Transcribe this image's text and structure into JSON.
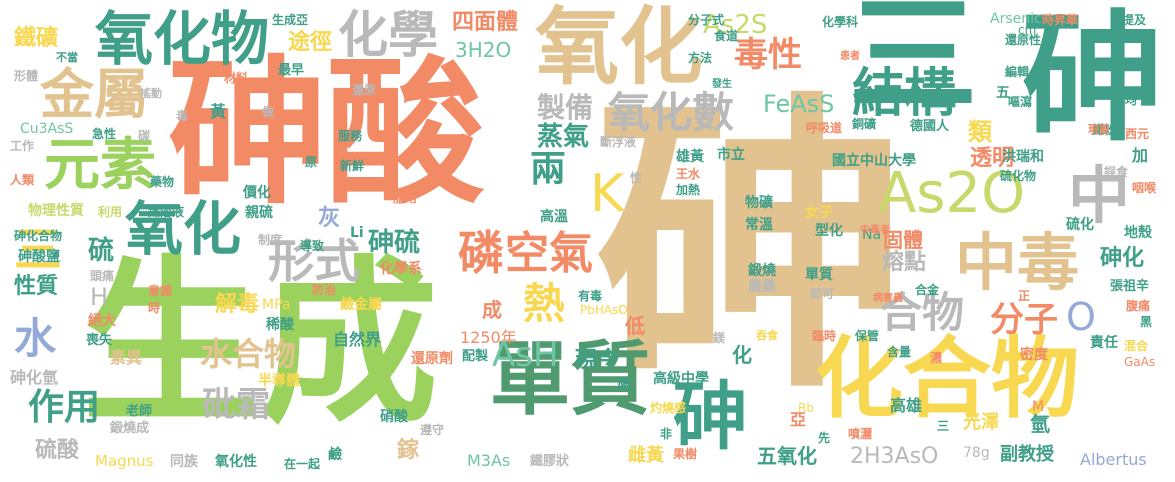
{
  "palette": {
    "tan": "#e2c38f",
    "salmon": "#f28a66",
    "green": "#9bd15d",
    "teal": "#6fc6a4",
    "seagreen": "#3f9f88",
    "gray": "#b9b9b9",
    "yellow": "#f8d850",
    "blue": "#94a9d8",
    "olive": "#c8d86a",
    "darkgreen": "#4f9a6f"
  },
  "words": [
    {
      "text": "砷",
      "color": "tan"
    },
    {
      "text": "生成",
      "color": "green"
    },
    {
      "text": "砷酸",
      "color": "salmon"
    },
    {
      "text": "砷",
      "color": "seagreen"
    },
    {
      "text": "三",
      "color": "seagreen"
    },
    {
      "text": "氧化",
      "color": "tan"
    },
    {
      "text": "化合物",
      "color": "yellow"
    },
    {
      "text": "單質",
      "color": "darkgreen"
    },
    {
      "text": "砷",
      "color": "seagreen"
    },
    {
      "text": "As2O",
      "color": "olive"
    },
    {
      "text": "中毒",
      "color": "tan"
    },
    {
      "text": "中",
      "color": "gray"
    },
    {
      "text": "氧化物",
      "color": "seagreen"
    },
    {
      "text": "氧化",
      "color": "seagreen"
    },
    {
      "text": "化學",
      "color": "gray"
    },
    {
      "text": "金屬",
      "color": "tan"
    },
    {
      "text": "元素",
      "color": "green"
    },
    {
      "text": "結構",
      "color": "seagreen"
    },
    {
      "text": "毒性",
      "color": "salmon"
    },
    {
      "text": "氧化數",
      "color": "gray"
    },
    {
      "text": "磷",
      "color": "salmon"
    },
    {
      "text": "空氣",
      "color": "salmon"
    },
    {
      "text": "形式",
      "color": "gray"
    },
    {
      "text": "熱",
      "color": "yellow"
    },
    {
      "text": "AsH",
      "color": "teal"
    },
    {
      "text": "合物",
      "color": "gray"
    },
    {
      "text": "水",
      "color": "blue"
    },
    {
      "text": "作用",
      "color": "seagreen"
    },
    {
      "text": "水合物",
      "color": "tan"
    },
    {
      "text": "砒霜",
      "color": "gray"
    },
    {
      "text": "三",
      "color": "yellow"
    },
    {
      "text": "硫",
      "color": "seagreen"
    },
    {
      "text": "K",
      "color": "yellow"
    },
    {
      "text": "兩",
      "color": "seagreen"
    },
    {
      "text": "製備",
      "color": "gray"
    },
    {
      "text": "蒸氣",
      "color": "seagreen"
    },
    {
      "text": "分子",
      "color": "salmon"
    },
    {
      "text": "O",
      "color": "blue"
    },
    {
      "text": "砷化",
      "color": "seagreen"
    },
    {
      "text": "FeAsS",
      "color": "teal"
    },
    {
      "text": "As2S",
      "color": "olive"
    },
    {
      "text": "四面體",
      "color": "salmon"
    },
    {
      "text": "3H2O",
      "color": "teal"
    },
    {
      "text": "途徑",
      "color": "yellow"
    },
    {
      "text": "鐵礦",
      "color": "yellow"
    },
    {
      "text": "砷硫",
      "color": "seagreen"
    },
    {
      "text": "灰",
      "color": "blue"
    },
    {
      "text": "熔點",
      "color": "gray"
    },
    {
      "text": "固體",
      "color": "salmon"
    },
    {
      "text": "類",
      "color": "yellow"
    },
    {
      "text": "透明",
      "color": "salmon"
    },
    {
      "text": "解毒",
      "color": "yellow"
    },
    {
      "text": "現今",
      "color": "seagreen"
    },
    {
      "text": "H",
      "color": "gray"
    },
    {
      "text": "性質",
      "color": "seagreen"
    },
    {
      "text": "硫酸",
      "color": "gray"
    },
    {
      "text": "2H3AsO",
      "color": "gray"
    },
    {
      "text": "五氧化",
      "color": "seagreen"
    },
    {
      "text": "副教授",
      "color": "seagreen"
    },
    {
      "text": "Albertus",
      "color": "blue"
    },
    {
      "text": "Magnus",
      "color": "yellow"
    },
    {
      "text": "M3As",
      "color": "teal"
    },
    {
      "text": "鐵膠狀",
      "color": "gray"
    },
    {
      "text": "雌黃",
      "color": "yellow"
    },
    {
      "text": "光澤",
      "color": "yellow"
    },
    {
      "text": "高雄",
      "color": "seagreen"
    },
    {
      "text": "砷化氫",
      "color": "gray"
    },
    {
      "text": "素異",
      "color": "tan"
    },
    {
      "text": "老師",
      "color": "seagreen"
    },
    {
      "text": "鍛燒成",
      "color": "gray"
    },
    {
      "text": "同族",
      "color": "gray"
    },
    {
      "text": "氧化性",
      "color": "seagreen"
    },
    {
      "text": "在一起",
      "color": "seagreen"
    },
    {
      "text": "鹼",
      "color": "seagreen"
    },
    {
      "text": "硝酸",
      "color": "seagreen"
    },
    {
      "text": "遵守",
      "color": "gray"
    },
    {
      "text": "鎵",
      "color": "tan"
    },
    {
      "text": "自然界",
      "color": "seagreen"
    },
    {
      "text": "還原劑",
      "color": "salmon"
    },
    {
      "text": "1250年",
      "color": "salmon"
    },
    {
      "text": "配製",
      "color": "seagreen"
    },
    {
      "text": "高級中學",
      "color": "seagreen"
    },
    {
      "text": "化",
      "color": "seagreen"
    },
    {
      "text": "低",
      "color": "salmon"
    },
    {
      "text": "成",
      "color": "salmon"
    },
    {
      "text": "化學系",
      "color": "salmon"
    },
    {
      "text": "鹼金屬",
      "color": "yellow"
    },
    {
      "text": "MPa",
      "color": "yellow"
    },
    {
      "text": "稀酸",
      "color": "seagreen"
    },
    {
      "text": "半導體",
      "color": "yellow"
    },
    {
      "text": "絕大",
      "color": "salmon"
    },
    {
      "text": "喪失",
      "color": "seagreen"
    },
    {
      "text": "砷酸鹽",
      "color": "seagreen"
    },
    {
      "text": "頭痛",
      "color": "gray"
    },
    {
      "text": "意識",
      "color": "salmon"
    },
    {
      "text": "時",
      "color": "salmon"
    },
    {
      "text": "物理性質",
      "color": "olive"
    },
    {
      "text": "利用",
      "color": "olive"
    },
    {
      "text": "鐵溶液",
      "color": "seagreen"
    },
    {
      "text": "砷化合物",
      "color": "seagreen"
    },
    {
      "text": "人類",
      "color": "salmon"
    },
    {
      "text": "藥物",
      "color": "seagreen"
    },
    {
      "text": "價化",
      "color": "seagreen"
    },
    {
      "text": "親硫",
      "color": "seagreen"
    },
    {
      "text": "制度",
      "color": "gray"
    },
    {
      "text": "導致",
      "color": "seagreen"
    },
    {
      "text": "防治",
      "color": "salmon"
    },
    {
      "text": "Li",
      "color": "seagreen"
    },
    {
      "text": "形體",
      "color": "gray"
    },
    {
      "text": "不當",
      "color": "seagreen"
    },
    {
      "text": "搖動",
      "color": "gray"
    },
    {
      "text": "Cu3AsS",
      "color": "teal"
    },
    {
      "text": "急性",
      "color": "seagreen"
    },
    {
      "text": "工作",
      "color": "gray"
    },
    {
      "text": "碳",
      "color": "gray"
    },
    {
      "text": "服務",
      "color": "seagreen"
    },
    {
      "text": "還原",
      "color": "gray"
    },
    {
      "text": "做",
      "color": "gray"
    },
    {
      "text": "原",
      "color": "seagreen"
    },
    {
      "text": "新鮮",
      "color": "seagreen"
    },
    {
      "text": "材料",
      "color": "salmon"
    },
    {
      "text": "最早",
      "color": "seagreen"
    },
    {
      "text": "生成亞",
      "color": "seagreen"
    },
    {
      "text": "毒",
      "color": "gray"
    },
    {
      "text": "黃",
      "color": "seagreen"
    },
    {
      "text": "服用",
      "color": "salmon"
    },
    {
      "text": "斷浮液",
      "color": "gray"
    },
    {
      "text": "雄黃",
      "color": "seagreen"
    },
    {
      "text": "市立",
      "color": "seagreen"
    },
    {
      "text": "王水",
      "color": "salmon"
    },
    {
      "text": "加熱",
      "color": "seagreen"
    },
    {
      "text": "高溫",
      "color": "seagreen"
    },
    {
      "text": "性",
      "color": "gray"
    },
    {
      "text": "物礦",
      "color": "seagreen"
    },
    {
      "text": "常溫",
      "color": "seagreen"
    },
    {
      "text": "女子",
      "color": "yellow"
    },
    {
      "text": "型化",
      "color": "seagreen"
    },
    {
      "text": "鍛燒",
      "color": "seagreen"
    },
    {
      "text": "農藥",
      "color": "gray"
    },
    {
      "text": "單質",
      "color": "seagreen"
    },
    {
      "text": "即可",
      "color": "gray"
    },
    {
      "text": "Na",
      "color": "seagreen"
    },
    {
      "text": "中毒者",
      "color": "salmon"
    },
    {
      "text": "病害蟲",
      "color": "salmon"
    },
    {
      "text": "合金",
      "color": "seagreen"
    },
    {
      "text": "國立中山大學",
      "color": "seagreen"
    },
    {
      "text": "洪瑞和",
      "color": "seagreen"
    },
    {
      "text": "德國人",
      "color": "seagreen"
    },
    {
      "text": "硫化物",
      "color": "seagreen"
    },
    {
      "text": "呼吸道",
      "color": "salmon"
    },
    {
      "text": "銅礦",
      "color": "seagreen"
    },
    {
      "text": "化學科",
      "color": "seagreen"
    },
    {
      "text": "分子式",
      "color": "seagreen"
    },
    {
      "text": "Arsenic",
      "color": "seagreen"
    },
    {
      "text": "時昇華",
      "color": "salmon"
    },
    {
      "text": "提及",
      "color": "seagreen"
    },
    {
      "text": "還原性",
      "color": "seagreen"
    },
    {
      "text": "方法",
      "color": "seagreen"
    },
    {
      "text": "食道",
      "color": "seagreen"
    },
    {
      "text": "發生",
      "color": "seagreen"
    },
    {
      "text": "患者",
      "color": "salmon"
    },
    {
      "text": "編輯",
      "color": "seagreen"
    },
    {
      "text": "嘔瀉",
      "color": "seagreen"
    },
    {
      "text": "均",
      "color": "seagreen"
    },
    {
      "text": "鐵粉",
      "color": "seagreen"
    },
    {
      "text": "西元",
      "color": "salmon"
    },
    {
      "text": "誤食",
      "color": "gray"
    },
    {
      "text": "咽喉",
      "color": "salmon"
    },
    {
      "text": "加",
      "color": "seagreen"
    },
    {
      "text": "地殼",
      "color": "seagreen"
    },
    {
      "text": "張祖辛",
      "color": "seagreen"
    },
    {
      "text": "腹痛",
      "color": "salmon"
    },
    {
      "text": "責任",
      "color": "seagreen"
    },
    {
      "text": "黑",
      "color": "seagreen"
    },
    {
      "text": "混合",
      "color": "yellow"
    },
    {
      "text": "GaAs",
      "color": "salmon"
    },
    {
      "text": "密度",
      "color": "salmon"
    },
    {
      "text": "含量",
      "color": "seagreen"
    },
    {
      "text": "濃",
      "color": "salmon"
    },
    {
      "text": "保管",
      "color": "seagreen"
    },
    {
      "text": "臨時",
      "color": "salmon"
    },
    {
      "text": "吞食",
      "color": "yellow"
    },
    {
      "text": "鎂",
      "color": "gray"
    },
    {
      "text": "有毒",
      "color": "seagreen"
    },
    {
      "text": "PbHAsO",
      "color": "yellow"
    },
    {
      "text": "C",
      "color": "yellow"
    },
    {
      "text": "灼燒感",
      "color": "yellow"
    },
    {
      "text": "礦",
      "color": "seagreen"
    },
    {
      "text": "非",
      "color": "seagreen"
    },
    {
      "text": "亞",
      "color": "salmon"
    },
    {
      "text": "Rb",
      "color": "yellow"
    },
    {
      "text": "果樹",
      "color": "salmon"
    },
    {
      "text": "先",
      "color": "seagreen"
    },
    {
      "text": "噴灑",
      "color": "salmon"
    },
    {
      "text": "三",
      "color": "seagreen"
    },
    {
      "text": "78g",
      "color": "gray"
    },
    {
      "text": "M",
      "color": "salmon"
    },
    {
      "text": "五",
      "color": "seagreen"
    },
    {
      "text": "cm",
      "color": "seagreen"
    },
    {
      "text": "現象",
      "color": "salmon"
    },
    {
      "text": "正",
      "color": "salmon"
    },
    {
      "text": "氫",
      "color": "seagreen"
    },
    {
      "text": "硫化",
      "color": "seagreen"
    }
  ]
}
